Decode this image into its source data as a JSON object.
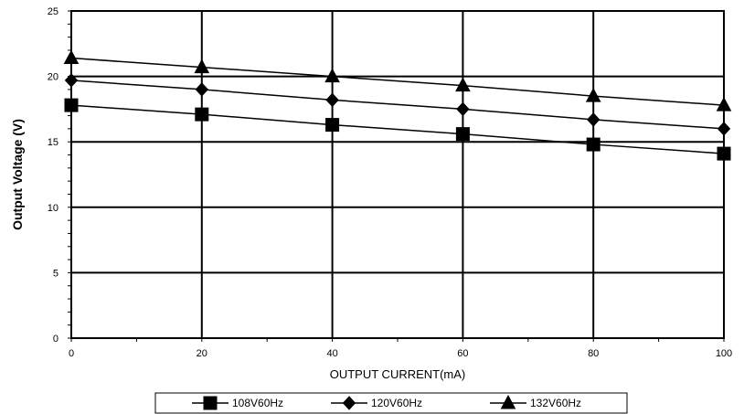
{
  "chart_data": {
    "type": "line",
    "title": "",
    "xlabel": "OUTPUT CURRENT(mA)",
    "ylabel": "Output Voltage (V)",
    "xlim": [
      0,
      100
    ],
    "ylim": [
      0,
      25
    ],
    "x_ticks": [
      0,
      20,
      40,
      60,
      80,
      100
    ],
    "y_ticks": [
      0,
      5,
      10,
      15,
      20,
      25
    ],
    "grid": true,
    "legend_position": "bottom",
    "x": [
      0,
      20,
      40,
      60,
      80,
      100
    ],
    "series": [
      {
        "name": "108V60Hz",
        "marker": "square",
        "values": [
          17.8,
          17.1,
          16.3,
          15.6,
          14.8,
          14.1
        ]
      },
      {
        "name": "120V60Hz",
        "marker": "diamond",
        "values": [
          19.7,
          19.0,
          18.2,
          17.5,
          16.7,
          16.0
        ]
      },
      {
        "name": "132V60Hz",
        "marker": "triangle",
        "values": [
          21.4,
          20.7,
          20.0,
          19.3,
          18.5,
          17.8
        ]
      }
    ]
  }
}
